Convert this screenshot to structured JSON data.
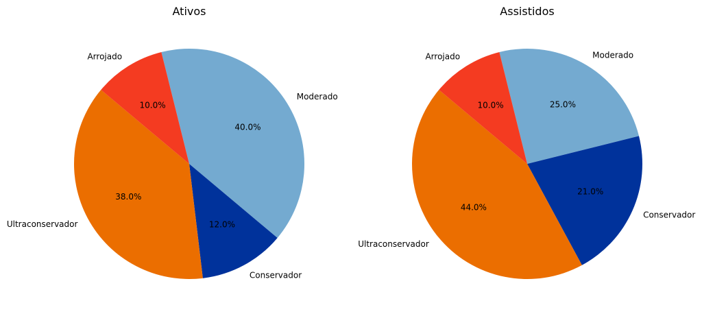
{
  "chart_data": [
    {
      "type": "pie",
      "title": "Ativos",
      "categories": [
        "Moderado",
        "Conservador",
        "Ultraconservador",
        "Arrojado"
      ],
      "values": [
        40.0,
        12.0,
        38.0,
        10.0
      ],
      "percent_labels": [
        "40.0%",
        "12.0%",
        "38.0%",
        "10.0%"
      ],
      "colors": [
        "#74aad0",
        "#00329b",
        "#eb6e00",
        "#f43b21"
      ],
      "start_angle_deg": 104,
      "direction": "clockwise"
    },
    {
      "type": "pie",
      "title": "Assistidos",
      "categories": [
        "Moderado",
        "Conservador",
        "Ultraconservador",
        "Arrojado"
      ],
      "values": [
        25.0,
        21.0,
        44.0,
        10.0
      ],
      "percent_labels": [
        "25.0%",
        "21.0%",
        "44.0%",
        "10.0%"
      ],
      "colors": [
        "#74aad0",
        "#00329b",
        "#eb6e00",
        "#f43b21"
      ],
      "start_angle_deg": 104,
      "direction": "clockwise"
    }
  ]
}
